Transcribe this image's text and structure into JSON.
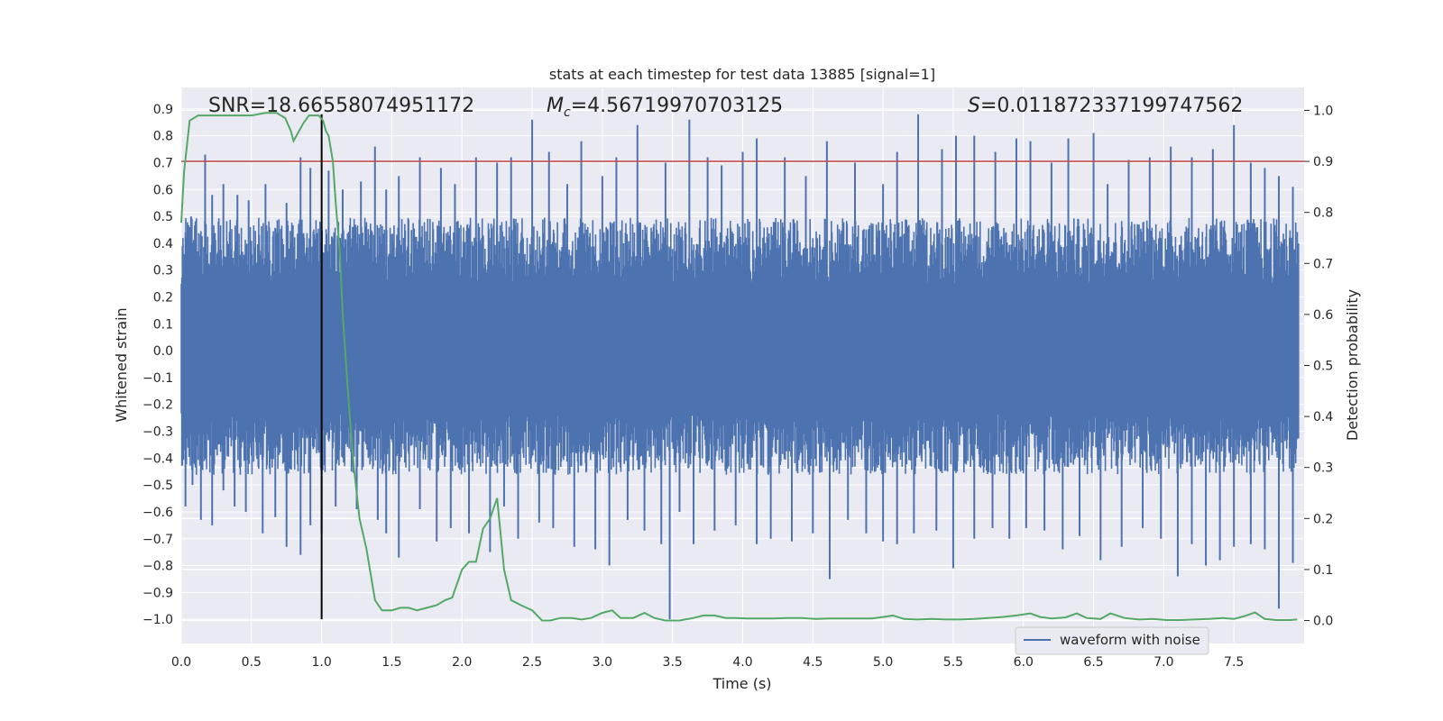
{
  "chart_data": {
    "type": "line",
    "title": "stats at each timestep for test data 13885 [signal=1]",
    "xlabel": "Time (s)",
    "ylabel_left": "Whitened strain",
    "ylabel_right": "Detection probability",
    "xlim": [
      0.0,
      8.0
    ],
    "ylim_left": [
      -1.09,
      0.98
    ],
    "ylim_right": [
      -0.045,
      1.045
    ],
    "x_ticks": [
      "0.0",
      "0.5",
      "1.0",
      "1.5",
      "2.0",
      "2.5",
      "3.0",
      "3.5",
      "4.0",
      "4.5",
      "5.0",
      "5.5",
      "6.0",
      "6.5",
      "7.0",
      "7.5"
    ],
    "x_tick_values": [
      0.0,
      0.5,
      1.0,
      1.5,
      2.0,
      2.5,
      3.0,
      3.5,
      4.0,
      4.5,
      5.0,
      5.5,
      6.0,
      6.5,
      7.0,
      7.5
    ],
    "y_left_ticks": [
      "0.9",
      "0.8",
      "0.7",
      "0.6",
      "0.5",
      "0.4",
      "0.3",
      "0.2",
      "0.1",
      "0.0",
      "−0.1",
      "−0.2",
      "−0.3",
      "−0.4",
      "−0.5",
      "−0.6",
      "−0.7",
      "−0.8",
      "−0.9",
      "−1.0"
    ],
    "y_left_tick_values": [
      0.9,
      0.8,
      0.7,
      0.6,
      0.5,
      0.4,
      0.3,
      0.2,
      0.1,
      0.0,
      -0.1,
      -0.2,
      -0.3,
      -0.4,
      -0.5,
      -0.6,
      -0.7,
      -0.8,
      -0.9,
      -1.0
    ],
    "y_right_ticks": [
      "1.0",
      "0.9",
      "0.8",
      "0.7",
      "0.6",
      "0.5",
      "0.4",
      "0.3",
      "0.2",
      "0.1",
      "0.0"
    ],
    "y_right_tick_values": [
      1.0,
      0.9,
      0.8,
      0.7,
      0.6,
      0.5,
      0.4,
      0.3,
      0.2,
      0.1,
      0.0
    ],
    "annotations": {
      "snr": "SNR=18.66558074951172",
      "mc_prefix": "M",
      "mc_sub": "c",
      "mc_value": "=4.56719970703125",
      "s_prefix": "S",
      "s_value": "=0.011872337199747562"
    },
    "threshold_probability": 0.9,
    "signal_marker_time": 1.0,
    "signal_marker_strain": [
      -1.0,
      0.88
    ],
    "series": [
      {
        "name": "waveform with noise",
        "axis": "left",
        "color": "#4c72b0",
        "description_kind": "noise envelope",
        "envelope_upper": 0.45,
        "envelope_lower": -0.42,
        "peaks": [
          [
            0.03,
            0.44
          ],
          [
            0.07,
            0.5
          ],
          [
            0.17,
            0.73
          ],
          [
            0.22,
            0.58
          ],
          [
            0.3,
            0.62
          ],
          [
            0.4,
            0.58
          ],
          [
            0.48,
            0.56
          ],
          [
            0.6,
            0.62
          ],
          [
            0.75,
            0.55
          ],
          [
            0.85,
            0.72
          ],
          [
            0.92,
            0.68
          ],
          [
            1.05,
            0.67
          ],
          [
            1.15,
            0.6
          ],
          [
            1.28,
            0.63
          ],
          [
            1.38,
            0.76
          ],
          [
            1.46,
            0.6
          ],
          [
            1.55,
            0.65
          ],
          [
            1.7,
            0.72
          ],
          [
            1.85,
            0.68
          ],
          [
            1.95,
            0.62
          ],
          [
            2.1,
            0.72
          ],
          [
            2.25,
            0.7
          ],
          [
            2.35,
            0.72
          ],
          [
            2.5,
            0.86
          ],
          [
            2.62,
            0.74
          ],
          [
            2.75,
            0.62
          ],
          [
            2.85,
            0.78
          ],
          [
            3.0,
            0.65
          ],
          [
            3.1,
            0.72
          ],
          [
            3.25,
            0.84
          ],
          [
            3.45,
            0.7
          ],
          [
            3.62,
            0.86
          ],
          [
            3.75,
            0.72
          ],
          [
            3.85,
            0.69
          ],
          [
            4.0,
            0.74
          ],
          [
            4.1,
            0.79
          ],
          [
            4.3,
            0.72
          ],
          [
            4.45,
            0.65
          ],
          [
            4.6,
            0.78
          ],
          [
            4.8,
            0.7
          ],
          [
            5.0,
            0.62
          ],
          [
            5.1,
            0.74
          ],
          [
            5.25,
            0.88
          ],
          [
            5.42,
            0.75
          ],
          [
            5.52,
            0.8
          ],
          [
            5.65,
            0.8
          ],
          [
            5.8,
            0.74
          ],
          [
            5.95,
            0.79
          ],
          [
            6.05,
            0.78
          ],
          [
            6.2,
            0.7
          ],
          [
            6.32,
            0.79
          ],
          [
            6.5,
            0.81
          ],
          [
            6.6,
            0.62
          ],
          [
            6.75,
            0.71
          ],
          [
            6.9,
            0.72
          ],
          [
            7.05,
            0.76
          ],
          [
            7.2,
            0.72
          ],
          [
            7.35,
            0.75
          ],
          [
            7.5,
            0.84
          ],
          [
            7.62,
            0.7
          ],
          [
            7.72,
            0.68
          ],
          [
            7.82,
            0.65
          ],
          [
            7.92,
            0.61
          ]
        ],
        "troughs": [
          [
            0.03,
            -0.58
          ],
          [
            0.08,
            -0.5
          ],
          [
            0.14,
            -0.63
          ],
          [
            0.22,
            -0.65
          ],
          [
            0.3,
            -0.52
          ],
          [
            0.38,
            -0.58
          ],
          [
            0.46,
            -0.6
          ],
          [
            0.58,
            -0.68
          ],
          [
            0.67,
            -0.62
          ],
          [
            0.75,
            -0.73
          ],
          [
            0.85,
            -0.76
          ],
          [
            0.92,
            -0.65
          ],
          [
            1.0,
            -0.67
          ],
          [
            1.1,
            -0.58
          ],
          [
            1.25,
            -0.59
          ],
          [
            1.4,
            -0.63
          ],
          [
            1.46,
            -0.68
          ],
          [
            1.55,
            -0.77
          ],
          [
            1.7,
            -0.59
          ],
          [
            1.82,
            -0.71
          ],
          [
            1.92,
            -0.66
          ],
          [
            2.05,
            -0.68
          ],
          [
            2.2,
            -0.75
          ],
          [
            2.3,
            -0.58
          ],
          [
            2.4,
            -0.7
          ],
          [
            2.55,
            -0.64
          ],
          [
            2.65,
            -0.66
          ],
          [
            2.8,
            -0.73
          ],
          [
            2.95,
            -0.74
          ],
          [
            3.05,
            -0.8
          ],
          [
            3.18,
            -0.63
          ],
          [
            3.3,
            -0.67
          ],
          [
            3.42,
            -0.72
          ],
          [
            3.48,
            -1.0
          ],
          [
            3.55,
            -0.6
          ],
          [
            3.65,
            -0.72
          ],
          [
            3.8,
            -0.67
          ],
          [
            3.95,
            -0.65
          ],
          [
            4.1,
            -0.72
          ],
          [
            4.2,
            -0.7
          ],
          [
            4.35,
            -0.71
          ],
          [
            4.5,
            -0.68
          ],
          [
            4.62,
            -0.85
          ],
          [
            4.75,
            -0.63
          ],
          [
            4.88,
            -0.68
          ],
          [
            5.0,
            -0.71
          ],
          [
            5.1,
            -0.72
          ],
          [
            5.22,
            -0.68
          ],
          [
            5.38,
            -0.67
          ],
          [
            5.5,
            -0.81
          ],
          [
            5.65,
            -0.7
          ],
          [
            5.78,
            -0.66
          ],
          [
            5.9,
            -0.7
          ],
          [
            6.02,
            -0.66
          ],
          [
            6.15,
            -0.67
          ],
          [
            6.28,
            -0.74
          ],
          [
            6.4,
            -0.69
          ],
          [
            6.55,
            -0.78
          ],
          [
            6.7,
            -0.73
          ],
          [
            6.85,
            -0.66
          ],
          [
            6.98,
            -0.7
          ],
          [
            7.1,
            -0.84
          ],
          [
            7.2,
            -0.72
          ],
          [
            7.3,
            -0.8
          ],
          [
            7.4,
            -0.78
          ],
          [
            7.5,
            -0.73
          ],
          [
            7.62,
            -0.72
          ],
          [
            7.72,
            -0.74
          ],
          [
            7.82,
            -0.96
          ],
          [
            7.92,
            -0.79
          ]
        ]
      },
      {
        "name": "detection probability",
        "axis": "right",
        "color": "#55a868",
        "x": [
          0.0,
          0.02,
          0.06,
          0.12,
          0.2,
          0.3,
          0.4,
          0.5,
          0.6,
          0.68,
          0.74,
          0.78,
          0.8,
          0.83,
          0.87,
          0.91,
          0.94,
          0.98,
          1.01,
          1.03,
          1.05,
          1.08,
          1.1,
          1.13,
          1.15,
          1.18,
          1.2,
          1.23,
          1.27,
          1.32,
          1.38,
          1.43,
          1.5,
          1.56,
          1.62,
          1.68,
          1.75,
          1.82,
          1.88,
          1.93,
          2.0,
          2.05,
          2.1,
          2.15,
          2.2,
          2.25,
          2.3,
          2.35,
          2.42,
          2.5,
          2.57,
          2.63,
          2.7,
          2.78,
          2.85,
          2.92,
          3.0,
          3.07,
          3.13,
          3.22,
          3.3,
          3.37,
          3.45,
          3.55,
          3.65,
          3.72,
          3.8,
          3.88,
          3.95,
          4.03,
          4.12,
          4.22,
          4.32,
          4.42,
          4.52,
          4.62,
          4.72,
          4.82,
          4.92,
          5.0,
          5.07,
          5.15,
          5.25,
          5.35,
          5.45,
          5.55,
          5.65,
          5.75,
          5.85,
          5.95,
          6.05,
          6.12,
          6.2,
          6.3,
          6.38,
          6.45,
          6.55,
          6.62,
          6.72,
          6.82,
          6.92,
          7.02,
          7.12,
          7.22,
          7.32,
          7.42,
          7.5,
          7.58,
          7.65,
          7.72,
          7.8,
          7.9,
          7.95
        ],
        "y": [
          0.78,
          0.88,
          0.98,
          0.99,
          0.99,
          0.99,
          0.99,
          0.99,
          0.995,
          0.995,
          0.985,
          0.96,
          0.94,
          0.955,
          0.975,
          0.99,
          0.99,
          0.99,
          0.98,
          0.96,
          0.95,
          0.9,
          0.82,
          0.72,
          0.6,
          0.48,
          0.4,
          0.3,
          0.2,
          0.14,
          0.04,
          0.02,
          0.02,
          0.025,
          0.025,
          0.02,
          0.025,
          0.03,
          0.04,
          0.045,
          0.1,
          0.115,
          0.115,
          0.18,
          0.2,
          0.24,
          0.1,
          0.04,
          0.03,
          0.02,
          0.0,
          0.0,
          0.005,
          0.005,
          0.002,
          0.005,
          0.015,
          0.02,
          0.005,
          0.005,
          0.015,
          0.005,
          0.0,
          0.0,
          0.005,
          0.01,
          0.01,
          0.005,
          0.005,
          0.004,
          0.004,
          0.004,
          0.005,
          0.005,
          0.003,
          0.004,
          0.004,
          0.004,
          0.004,
          0.007,
          0.01,
          0.003,
          0.002,
          0.003,
          0.002,
          0.002,
          0.003,
          0.005,
          0.007,
          0.01,
          0.014,
          0.007,
          0.004,
          0.006,
          0.014,
          0.005,
          0.003,
          0.014,
          0.005,
          0.002,
          0.003,
          0.001,
          0.001,
          0.002,
          0.003,
          0.005,
          0.003,
          0.009,
          0.016,
          0.003,
          0.001,
          0.001,
          0.002
        ]
      }
    ],
    "legend": {
      "label": "waveform with noise",
      "placement": "lower-right"
    }
  }
}
